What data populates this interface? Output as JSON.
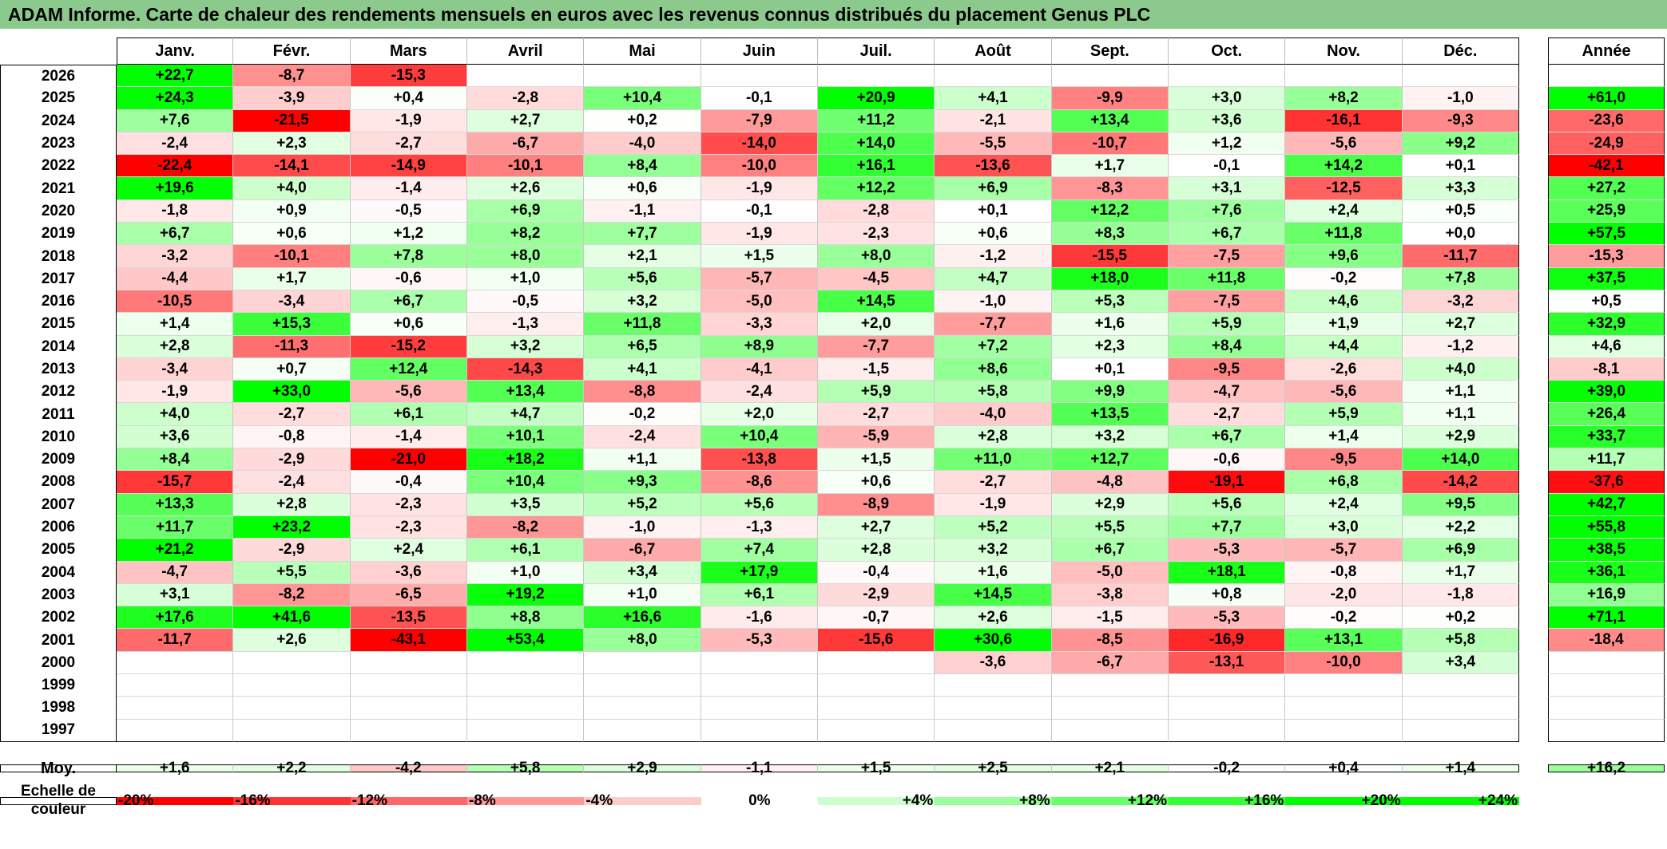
{
  "title": "ADAM Informe. Carte de chaleur des rendements mensuels en euros avec les revenus connus distribués du placement Genus PLC",
  "chart_data": {
    "type": "heatmap",
    "columns": [
      "Janv.",
      "Févr.",
      "Mars",
      "Avril",
      "Mai",
      "Juin",
      "Juil.",
      "Août",
      "Sept.",
      "Oct.",
      "Nov.",
      "Déc."
    ],
    "year_column_label": "Année",
    "rows": [
      {
        "label": "2026",
        "values": [
          22.7,
          -8.7,
          -15.3,
          null,
          null,
          null,
          null,
          null,
          null,
          null,
          null,
          null
        ],
        "year": null
      },
      {
        "label": "2025",
        "values": [
          24.3,
          -3.9,
          0.4,
          -2.8,
          10.4,
          -0.1,
          20.9,
          4.1,
          -9.9,
          3.0,
          8.2,
          -1.0
        ],
        "year": 61.0
      },
      {
        "label": "2024",
        "values": [
          7.6,
          -21.5,
          -1.9,
          2.7,
          0.2,
          -7.9,
          11.2,
          -2.1,
          13.4,
          3.6,
          -16.1,
          -9.3
        ],
        "year": -23.6
      },
      {
        "label": "2023",
        "values": [
          -2.4,
          2.3,
          -2.7,
          -6.7,
          -4.0,
          -14.0,
          14.0,
          -5.5,
          -10.7,
          1.2,
          -5.6,
          9.2
        ],
        "year": -24.9
      },
      {
        "label": "2022",
        "values": [
          -22.4,
          -14.1,
          -14.9,
          -10.1,
          8.4,
          -10.0,
          16.1,
          -13.6,
          1.7,
          -0.1,
          14.2,
          0.1
        ],
        "year": -42.1
      },
      {
        "label": "2021",
        "values": [
          19.6,
          4.0,
          -1.4,
          2.6,
          0.6,
          -1.9,
          12.2,
          6.9,
          -8.3,
          3.1,
          -12.5,
          3.3
        ],
        "year": 27.2
      },
      {
        "label": "2020",
        "values": [
          -1.8,
          0.9,
          -0.5,
          6.9,
          -1.1,
          -0.1,
          -2.8,
          0.1,
          12.2,
          7.6,
          2.4,
          0.5
        ],
        "year": 25.9
      },
      {
        "label": "2019",
        "values": [
          6.7,
          0.6,
          1.2,
          8.2,
          7.7,
          -1.9,
          -2.3,
          0.6,
          8.3,
          6.7,
          11.8,
          0.0
        ],
        "year": 57.5
      },
      {
        "label": "2018",
        "values": [
          -3.2,
          -10.1,
          7.8,
          8.0,
          2.1,
          1.5,
          8.0,
          -1.2,
          -15.5,
          -7.5,
          9.6,
          -11.7
        ],
        "year": -15.3
      },
      {
        "label": "2017",
        "values": [
          -4.4,
          1.7,
          -0.6,
          1.0,
          5.6,
          -5.7,
          -4.5,
          4.7,
          18.0,
          11.8,
          -0.2,
          7.8
        ],
        "year": 37.5
      },
      {
        "label": "2016",
        "values": [
          -10.5,
          -3.4,
          6.7,
          -0.5,
          3.2,
          -5.0,
          14.5,
          -1.0,
          5.3,
          -7.5,
          4.6,
          -3.2
        ],
        "year": 0.5
      },
      {
        "label": "2015",
        "values": [
          1.4,
          15.3,
          0.6,
          -1.3,
          11.8,
          -3.3,
          2.0,
          -7.7,
          1.6,
          5.9,
          1.9,
          2.7
        ],
        "year": 32.9
      },
      {
        "label": "2014",
        "values": [
          2.8,
          -11.3,
          -15.2,
          3.2,
          6.5,
          8.9,
          -7.7,
          7.2,
          2.3,
          8.4,
          4.4,
          -1.2
        ],
        "year": 4.6
      },
      {
        "label": "2013",
        "values": [
          -3.4,
          0.7,
          12.4,
          -14.3,
          4.1,
          -4.1,
          -1.5,
          8.6,
          0.1,
          -9.5,
          -2.6,
          4.0
        ],
        "year": -8.1
      },
      {
        "label": "2012",
        "values": [
          -1.9,
          33.0,
          -5.6,
          13.4,
          -8.8,
          -2.4,
          5.9,
          5.8,
          9.9,
          -4.7,
          -5.6,
          1.1
        ],
        "year": 39.0
      },
      {
        "label": "2011",
        "values": [
          4.0,
          -2.7,
          6.1,
          4.7,
          -0.2,
          2.0,
          -2.7,
          -4.0,
          13.5,
          -2.7,
          5.9,
          1.1
        ],
        "year": 26.4
      },
      {
        "label": "2010",
        "values": [
          3.6,
          -0.8,
          -1.4,
          10.1,
          -2.4,
          10.4,
          -5.9,
          2.8,
          3.2,
          6.7,
          1.4,
          2.9
        ],
        "year": 33.7
      },
      {
        "label": "2009",
        "values": [
          8.4,
          -2.9,
          -21.0,
          18.2,
          1.1,
          -13.8,
          1.5,
          11.0,
          12.7,
          -0.6,
          -9.5,
          14.0
        ],
        "year": 11.7
      },
      {
        "label": "2008",
        "values": [
          -15.7,
          -2.4,
          -0.4,
          10.4,
          9.3,
          -8.6,
          0.6,
          -2.7,
          -4.8,
          -19.1,
          6.8,
          -14.2
        ],
        "year": -37.6
      },
      {
        "label": "2007",
        "values": [
          13.3,
          2.8,
          -2.3,
          3.5,
          5.2,
          5.6,
          -8.9,
          -1.9,
          2.9,
          5.6,
          2.4,
          9.5
        ],
        "year": 42.7
      },
      {
        "label": "2006",
        "values": [
          11.7,
          23.2,
          -2.3,
          -8.2,
          -1.0,
          -1.3,
          2.7,
          5.2,
          5.5,
          7.7,
          3.0,
          2.2
        ],
        "year": 55.8
      },
      {
        "label": "2005",
        "values": [
          21.2,
          -2.9,
          2.4,
          6.1,
          -6.7,
          7.4,
          2.8,
          3.2,
          6.7,
          -5.3,
          -5.7,
          6.9
        ],
        "year": 38.5
      },
      {
        "label": "2004",
        "values": [
          -4.7,
          5.5,
          -3.6,
          1.0,
          3.4,
          17.9,
          -0.4,
          1.6,
          -5.0,
          18.1,
          -0.8,
          1.7
        ],
        "year": 36.1
      },
      {
        "label": "2003",
        "values": [
          3.1,
          -8.2,
          -6.5,
          19.2,
          1.0,
          6.1,
          -2.9,
          14.5,
          -3.8,
          0.8,
          -2.0,
          -1.8
        ],
        "year": 16.9
      },
      {
        "label": "2002",
        "values": [
          17.6,
          41.6,
          -13.5,
          8.8,
          16.6,
          -1.6,
          -0.7,
          2.6,
          -1.5,
          -5.3,
          -0.2,
          0.2
        ],
        "year": 71.1
      },
      {
        "label": "2001",
        "values": [
          -11.7,
          2.6,
          -43.1,
          53.4,
          8.0,
          -5.3,
          -15.6,
          30.6,
          -8.5,
          -16.9,
          13.1,
          5.8
        ],
        "year": -18.4
      },
      {
        "label": "2000",
        "values": [
          null,
          null,
          null,
          null,
          null,
          null,
          null,
          -3.6,
          -6.7,
          -13.1,
          -10.0,
          3.4
        ],
        "year": null
      },
      {
        "label": "1999",
        "values": [
          null,
          null,
          null,
          null,
          null,
          null,
          null,
          null,
          null,
          null,
          null,
          null
        ],
        "year": null
      },
      {
        "label": "1998",
        "values": [
          null,
          null,
          null,
          null,
          null,
          null,
          null,
          null,
          null,
          null,
          null,
          null
        ],
        "year": null
      },
      {
        "label": "1997",
        "values": [
          null,
          null,
          null,
          null,
          null,
          null,
          null,
          null,
          null,
          null,
          null,
          null
        ],
        "year": null
      }
    ],
    "average": {
      "label": "Moy.",
      "values": [
        1.6,
        2.2,
        -4.2,
        5.8,
        2.9,
        -1.1,
        1.5,
        2.5,
        2.1,
        -0.2,
        0.4,
        1.4
      ],
      "year": 16.2
    },
    "scale": {
      "label_line1": "Echelle de",
      "label_line2": "couleur",
      "stops": [
        {
          "text": "-20%",
          "value": -20
        },
        {
          "text": "-16%",
          "value": -16
        },
        {
          "text": "-12%",
          "value": -12
        },
        {
          "text": "-8%",
          "value": -8
        },
        {
          "text": "-4%",
          "value": -4
        },
        {
          "text": "0%",
          "value": 0
        },
        {
          "text": "+4%",
          "value": 4
        },
        {
          "text": "+8%",
          "value": 8
        },
        {
          "text": "+12%",
          "value": 12
        },
        {
          "text": "+16%",
          "value": 16
        },
        {
          "text": "+20%",
          "value": 20
        },
        {
          "text": "+24%",
          "value": 24
        }
      ]
    },
    "colors": {
      "negative_max": "#ff0000",
      "neutral": "#ffffff",
      "positive_max": "#00ff00",
      "banner": "#8cc98c"
    }
  }
}
